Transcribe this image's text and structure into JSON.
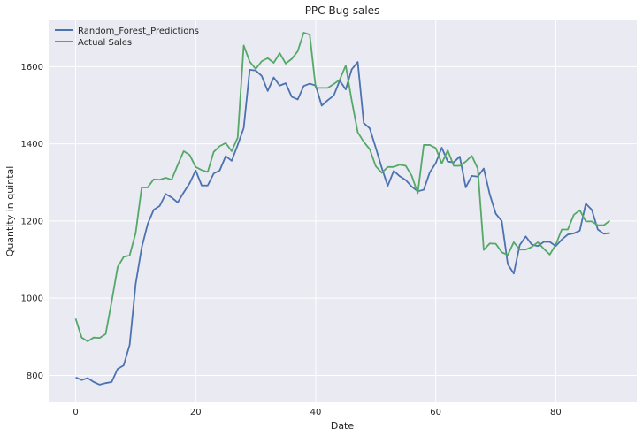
{
  "chart_data": {
    "type": "line",
    "title": "PPC-Bug sales",
    "xlabel": "Date",
    "ylabel": "Quantity in quintal",
    "xlim": [
      -4.5,
      93.5
    ],
    "ylim": [
      730,
      1720
    ],
    "xticks": [
      0,
      20,
      40,
      60,
      80
    ],
    "yticks": [
      800,
      1000,
      1200,
      1400,
      1600
    ],
    "grid": true,
    "legend_position": "top-left",
    "background": "#EAEAF2",
    "series": [
      {
        "name": "Random_Forest_Predictions",
        "color": "#4C72B0",
        "x": [
          0,
          1,
          2,
          3,
          4,
          5,
          6,
          7,
          8,
          9,
          10,
          11,
          12,
          13,
          14,
          15,
          16,
          17,
          18,
          19,
          20,
          21,
          22,
          23,
          24,
          25,
          26,
          27,
          28,
          29,
          30,
          31,
          32,
          33,
          34,
          35,
          36,
          37,
          38,
          39,
          40,
          41,
          42,
          43,
          44,
          45,
          46,
          47,
          48,
          49,
          50,
          51,
          52,
          53,
          54,
          55,
          56,
          57,
          58,
          59,
          60,
          61,
          62,
          63,
          64,
          65,
          66,
          67,
          68,
          69,
          70,
          71,
          72,
          73,
          74,
          75,
          76,
          77,
          78,
          79,
          80,
          81,
          82,
          83,
          84,
          85,
          86,
          87,
          88,
          89
        ],
        "y": [
          795,
          788,
          793,
          783,
          776,
          780,
          783,
          817,
          826,
          879,
          1037,
          1131,
          1192,
          1229,
          1239,
          1270,
          1261,
          1248,
          1274,
          1298,
          1331,
          1292,
          1292,
          1323,
          1331,
          1368,
          1356,
          1397,
          1441,
          1592,
          1590,
          1576,
          1537,
          1572,
          1551,
          1557,
          1522,
          1515,
          1550,
          1556,
          1551,
          1499,
          1513,
          1525,
          1564,
          1541,
          1593,
          1612,
          1454,
          1440,
          1390,
          1338,
          1291,
          1330,
          1316,
          1306,
          1289,
          1277,
          1281,
          1326,
          1350,
          1390,
          1354,
          1352,
          1367,
          1287,
          1317,
          1315,
          1336,
          1269,
          1219,
          1200,
          1088,
          1064,
          1138,
          1160,
          1139,
          1135,
          1146,
          1146,
          1135,
          1152,
          1165,
          1168,
          1175,
          1245,
          1229,
          1178,
          1167,
          1169
        ]
      },
      {
        "name": "Actual Sales",
        "color": "#55A868",
        "x": [
          0,
          1,
          2,
          3,
          4,
          5,
          6,
          7,
          8,
          9,
          10,
          11,
          12,
          13,
          14,
          15,
          16,
          17,
          18,
          19,
          20,
          21,
          22,
          23,
          24,
          25,
          26,
          27,
          28,
          29,
          30,
          31,
          32,
          33,
          34,
          35,
          36,
          37,
          38,
          39,
          40,
          41,
          42,
          43,
          44,
          45,
          46,
          47,
          48,
          49,
          50,
          51,
          52,
          53,
          54,
          55,
          56,
          57,
          58,
          59,
          60,
          61,
          62,
          63,
          64,
          65,
          66,
          67,
          68,
          69,
          70,
          71,
          72,
          73,
          74,
          75,
          76,
          77,
          78,
          79,
          80,
          81,
          82,
          83,
          84,
          85,
          86,
          87,
          88,
          89
        ],
        "y": [
          947,
          898,
          888,
          898,
          897,
          907,
          991,
          1081,
          1107,
          1111,
          1169,
          1287,
          1287,
          1308,
          1307,
          1312,
          1307,
          1345,
          1381,
          1371,
          1340,
          1332,
          1327,
          1379,
          1394,
          1402,
          1381,
          1416,
          1655,
          1613,
          1594,
          1614,
          1622,
          1610,
          1635,
          1608,
          1620,
          1640,
          1688,
          1683,
          1545,
          1545,
          1545,
          1555,
          1566,
          1603,
          1512,
          1430,
          1405,
          1386,
          1342,
          1325,
          1340,
          1340,
          1346,
          1343,
          1317,
          1272,
          1397,
          1397,
          1389,
          1349,
          1383,
          1343,
          1343,
          1354,
          1369,
          1336,
          1125,
          1142,
          1141,
          1119,
          1112,
          1145,
          1126,
          1126,
          1133,
          1145,
          1128,
          1113,
          1139,
          1178,
          1178,
          1216,
          1228,
          1199,
          1199,
          1189,
          1189,
          1201
        ]
      }
    ]
  }
}
